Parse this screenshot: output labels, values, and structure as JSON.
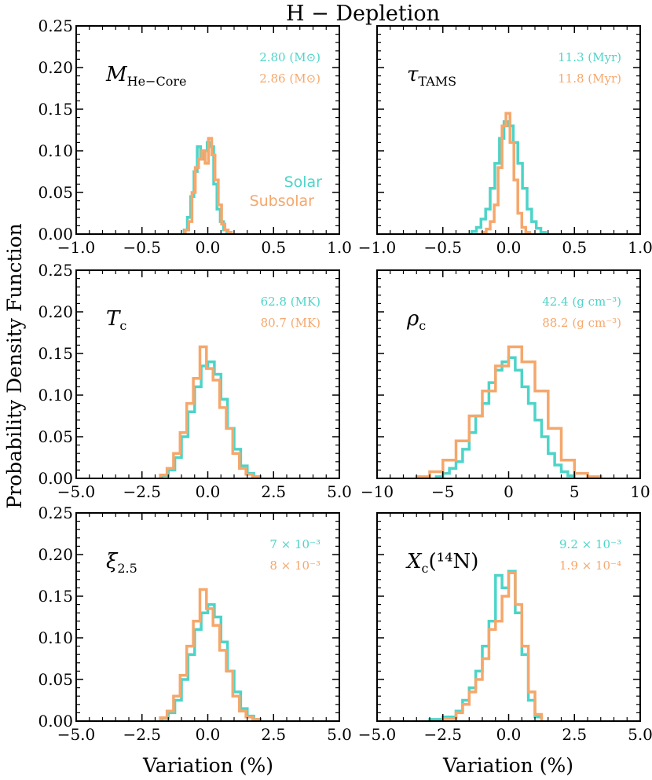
{
  "figure": {
    "title": "H − Depletion",
    "ylabel": "Probability Density Function",
    "xlabel": "Variation (%)"
  },
  "colors": {
    "solar": "#4dd4c8",
    "subsolar": "#f5a76c"
  },
  "legend": {
    "solar": "Solar",
    "subsolar": "Subsolar"
  },
  "chart_data": [
    {
      "type": "step-histogram",
      "label": "M",
      "sub": "He−Core",
      "annot_solar": "2.80 (M⊙)",
      "annot_subsolar": "2.86 (M⊙)",
      "xlim": [
        -1.0,
        1.0
      ],
      "ylim": [
        0,
        0.25
      ],
      "xticks": [
        -1.0,
        -0.5,
        0.0,
        0.5,
        1.0
      ],
      "xticklabels": [
        "−1.0",
        "−0.5",
        "0.0",
        "0.5",
        "1.0"
      ],
      "yticks": [
        0,
        0.05,
        0.1,
        0.15,
        0.2,
        0.25
      ],
      "yticklabels": [
        "0.00",
        "0.05",
        "0.10",
        "0.15",
        "0.20",
        "0.25"
      ],
      "show_legend": true,
      "series": [
        {
          "name": "Solar",
          "edges": [
            -0.18,
            -0.155,
            -0.13,
            -0.105,
            -0.08,
            -0.055,
            -0.03,
            -0.005,
            0.02,
            0.045,
            0.07,
            0.095,
            0.12,
            0.145,
            0.17
          ],
          "values": [
            0.005,
            0.02,
            0.045,
            0.075,
            0.105,
            0.09,
            0.1,
            0.11,
            0.105,
            0.06,
            0.03,
            0.015,
            0.005,
            0.002
          ]
        },
        {
          "name": "Subsolar",
          "edges": [
            -0.17,
            -0.145,
            -0.12,
            -0.095,
            -0.07,
            -0.045,
            -0.02,
            0.005,
            0.03,
            0.055,
            0.08,
            0.105,
            0.13,
            0.155,
            0.18
          ],
          "values": [
            0.005,
            0.015,
            0.05,
            0.08,
            0.09,
            0.1,
            0.085,
            0.115,
            0.095,
            0.065,
            0.035,
            0.012,
            0.005,
            0.002
          ]
        }
      ]
    },
    {
      "type": "step-histogram",
      "label": "τ",
      "sub": "TAMS",
      "annot_solar": "11.3 (Myr)",
      "annot_subsolar": "11.8 (Myr)",
      "xlim": [
        -1.0,
        1.0
      ],
      "ylim": [
        0,
        0.25
      ],
      "xticks": [
        -1.0,
        -0.5,
        0.0,
        0.5,
        1.0
      ],
      "xticklabels": [
        "−1.0",
        "−0.5",
        "0.0",
        "0.5",
        "1.0"
      ],
      "yticks": [
        0,
        0.05,
        0.1,
        0.15,
        0.2,
        0.25
      ],
      "yticklabels": [],
      "show_legend": false,
      "series": [
        {
          "name": "Solar",
          "edges": [
            -0.28,
            -0.245,
            -0.21,
            -0.175,
            -0.14,
            -0.105,
            -0.07,
            -0.035,
            0.0,
            0.035,
            0.07,
            0.105,
            0.14,
            0.175,
            0.21,
            0.245,
            0.28
          ],
          "values": [
            0.003,
            0.008,
            0.018,
            0.03,
            0.055,
            0.085,
            0.115,
            0.135,
            0.13,
            0.11,
            0.085,
            0.055,
            0.03,
            0.015,
            0.007,
            0.002
          ]
        },
        {
          "name": "Subsolar",
          "edges": [
            -0.2,
            -0.17,
            -0.14,
            -0.11,
            -0.08,
            -0.05,
            -0.02,
            0.01,
            0.04,
            0.07,
            0.1,
            0.13,
            0.16
          ],
          "values": [
            0.002,
            0.006,
            0.015,
            0.035,
            0.08,
            0.13,
            0.145,
            0.11,
            0.065,
            0.025,
            0.008,
            0.002
          ]
        }
      ]
    },
    {
      "type": "step-histogram",
      "label": "T",
      "sub": "c",
      "annot_solar": "62.8 (MK)",
      "annot_subsolar": "80.7 (MK)",
      "xlim": [
        -5.0,
        5.0
      ],
      "ylim": [
        0,
        0.25
      ],
      "xticks": [
        -5.0,
        -2.5,
        0.0,
        2.5,
        5.0
      ],
      "xticklabels": [
        "−5.0",
        "−2.5",
        "0.0",
        "2.5",
        "5.0"
      ],
      "yticks": [
        0,
        0.05,
        0.1,
        0.15,
        0.2,
        0.25
      ],
      "yticklabels": [
        "0.00",
        "0.05",
        "0.10",
        "0.15",
        "0.20",
        "0.25"
      ],
      "show_legend": false,
      "series": [
        {
          "name": "Solar",
          "edges": [
            -1.75,
            -1.5,
            -1.25,
            -1.0,
            -0.75,
            -0.5,
            -0.25,
            0.0,
            0.25,
            0.5,
            0.75,
            1.0,
            1.25,
            1.5,
            1.75,
            2.0
          ],
          "values": [
            0.003,
            0.01,
            0.025,
            0.05,
            0.08,
            0.11,
            0.135,
            0.14,
            0.125,
            0.095,
            0.06,
            0.035,
            0.015,
            0.006,
            0.002
          ]
        },
        {
          "name": "Subsolar",
          "edges": [
            -1.8,
            -1.55,
            -1.3,
            -1.05,
            -0.8,
            -0.55,
            -0.3,
            -0.05,
            0.2,
            0.45,
            0.7,
            0.95,
            1.2,
            1.45,
            1.7,
            1.95
          ],
          "values": [
            0.004,
            0.012,
            0.03,
            0.055,
            0.09,
            0.12,
            0.158,
            0.132,
            0.118,
            0.085,
            0.06,
            0.03,
            0.012,
            0.005,
            0.002
          ]
        }
      ]
    },
    {
      "type": "step-histogram",
      "label": "ρ",
      "sub": "c",
      "annot_solar": "42.4 (g cm⁻³)",
      "annot_subsolar": "88.2 (g cm⁻³)",
      "xlim": [
        -10,
        10
      ],
      "ylim": [
        0,
        0.25
      ],
      "xticks": [
        -10,
        -5,
        0,
        5,
        10
      ],
      "xticklabels": [
        "−10",
        "−5",
        "0",
        "5",
        "10"
      ],
      "yticks": [
        0,
        0.05,
        0.1,
        0.15,
        0.2,
        0.25
      ],
      "yticklabels": [],
      "show_legend": false,
      "series": [
        {
          "name": "Solar",
          "edges": [
            -5.5,
            -5.0,
            -4.5,
            -4.0,
            -3.5,
            -3.0,
            -2.5,
            -2.0,
            -1.5,
            -1.0,
            -0.5,
            0.0,
            0.5,
            1.0,
            1.5,
            2.0,
            2.5,
            3.0,
            3.5,
            4.0,
            4.5,
            5.0
          ],
          "values": [
            0.002,
            0.006,
            0.012,
            0.02,
            0.035,
            0.055,
            0.075,
            0.09,
            0.115,
            0.13,
            0.14,
            0.145,
            0.13,
            0.11,
            0.09,
            0.07,
            0.05,
            0.03,
            0.016,
            0.008,
            0.003
          ]
        },
        {
          "name": "Subsolar",
          "edges": [
            -7.0,
            -6.0,
            -5.0,
            -4.0,
            -3.0,
            -2.0,
            -1.0,
            0.0,
            1.0,
            2.0,
            3.0,
            4.0,
            5.0,
            6.0,
            7.0
          ],
          "values": [
            0.002,
            0.008,
            0.022,
            0.045,
            0.075,
            0.105,
            0.135,
            0.158,
            0.14,
            0.105,
            0.06,
            0.022,
            0.006,
            0.002
          ]
        }
      ]
    },
    {
      "type": "step-histogram",
      "label": "ξ",
      "sub": "2.5",
      "annot_solar": "7 × 10⁻³",
      "annot_subsolar": "8 × 10⁻³",
      "xlim": [
        -5.0,
        5.0
      ],
      "ylim": [
        0,
        0.25
      ],
      "xticks": [
        -5.0,
        -2.5,
        0.0,
        2.5,
        5.0
      ],
      "xticklabels": [
        "−5.0",
        "−2.5",
        "0.0",
        "2.5",
        "5.0"
      ],
      "yticks": [
        0,
        0.05,
        0.1,
        0.15,
        0.2,
        0.25
      ],
      "yticklabels": [
        "0.00",
        "0.05",
        "0.10",
        "0.15",
        "0.20",
        "0.25"
      ],
      "show_legend": false,
      "series": [
        {
          "name": "Solar",
          "edges": [
            -1.75,
            -1.5,
            -1.25,
            -1.0,
            -0.75,
            -0.5,
            -0.25,
            0.0,
            0.25,
            0.5,
            0.75,
            1.0,
            1.25,
            1.5,
            1.75,
            2.0
          ],
          "values": [
            0.003,
            0.01,
            0.025,
            0.05,
            0.08,
            0.11,
            0.13,
            0.14,
            0.125,
            0.095,
            0.06,
            0.035,
            0.015,
            0.006,
            0.002
          ]
        },
        {
          "name": "Subsolar",
          "edges": [
            -1.8,
            -1.55,
            -1.3,
            -1.05,
            -0.8,
            -0.55,
            -0.3,
            -0.05,
            0.2,
            0.45,
            0.7,
            0.95,
            1.2,
            1.45,
            1.7,
            1.95
          ],
          "values": [
            0.004,
            0.012,
            0.03,
            0.055,
            0.09,
            0.12,
            0.158,
            0.135,
            0.115,
            0.085,
            0.06,
            0.03,
            0.012,
            0.005,
            0.002
          ]
        }
      ]
    },
    {
      "type": "step-histogram",
      "label": "X",
      "sub": "c",
      "suffix": "(¹⁴N)",
      "annot_solar": "9.2 × 10⁻³",
      "annot_subsolar": "1.9 × 10⁻⁴",
      "xlim": [
        -5.0,
        5.0
      ],
      "ylim": [
        0,
        0.25
      ],
      "xticks": [
        -5.0,
        -2.5,
        0.0,
        2.5,
        5.0
      ],
      "xticklabels": [
        "−5.0",
        "−2.5",
        "0.0",
        "2.5",
        "5.0"
      ],
      "yticks": [
        0,
        0.05,
        0.1,
        0.15,
        0.2,
        0.25
      ],
      "yticklabels": [],
      "show_legend": false,
      "series": [
        {
          "name": "Solar",
          "edges": [
            -3.0,
            -2.5,
            -2.0,
            -1.75,
            -1.5,
            -1.25,
            -1.0,
            -0.75,
            -0.5,
            -0.25,
            0.0,
            0.25,
            0.5,
            0.75,
            1.0,
            1.25
          ],
          "values": [
            0.002,
            0.005,
            0.012,
            0.025,
            0.04,
            0.06,
            0.09,
            0.12,
            0.175,
            0.16,
            0.18,
            0.13,
            0.08,
            0.025,
            0.005
          ]
        },
        {
          "name": "Subsolar",
          "edges": [
            -2.5,
            -2.0,
            -1.75,
            -1.5,
            -1.25,
            -1.0,
            -0.75,
            -0.5,
            -0.25,
            0.0,
            0.25,
            0.5,
            0.75,
            1.0,
            1.25
          ],
          "values": [
            0.003,
            0.01,
            0.02,
            0.035,
            0.05,
            0.075,
            0.11,
            0.12,
            0.15,
            0.178,
            0.14,
            0.09,
            0.035,
            0.008
          ]
        }
      ]
    }
  ]
}
